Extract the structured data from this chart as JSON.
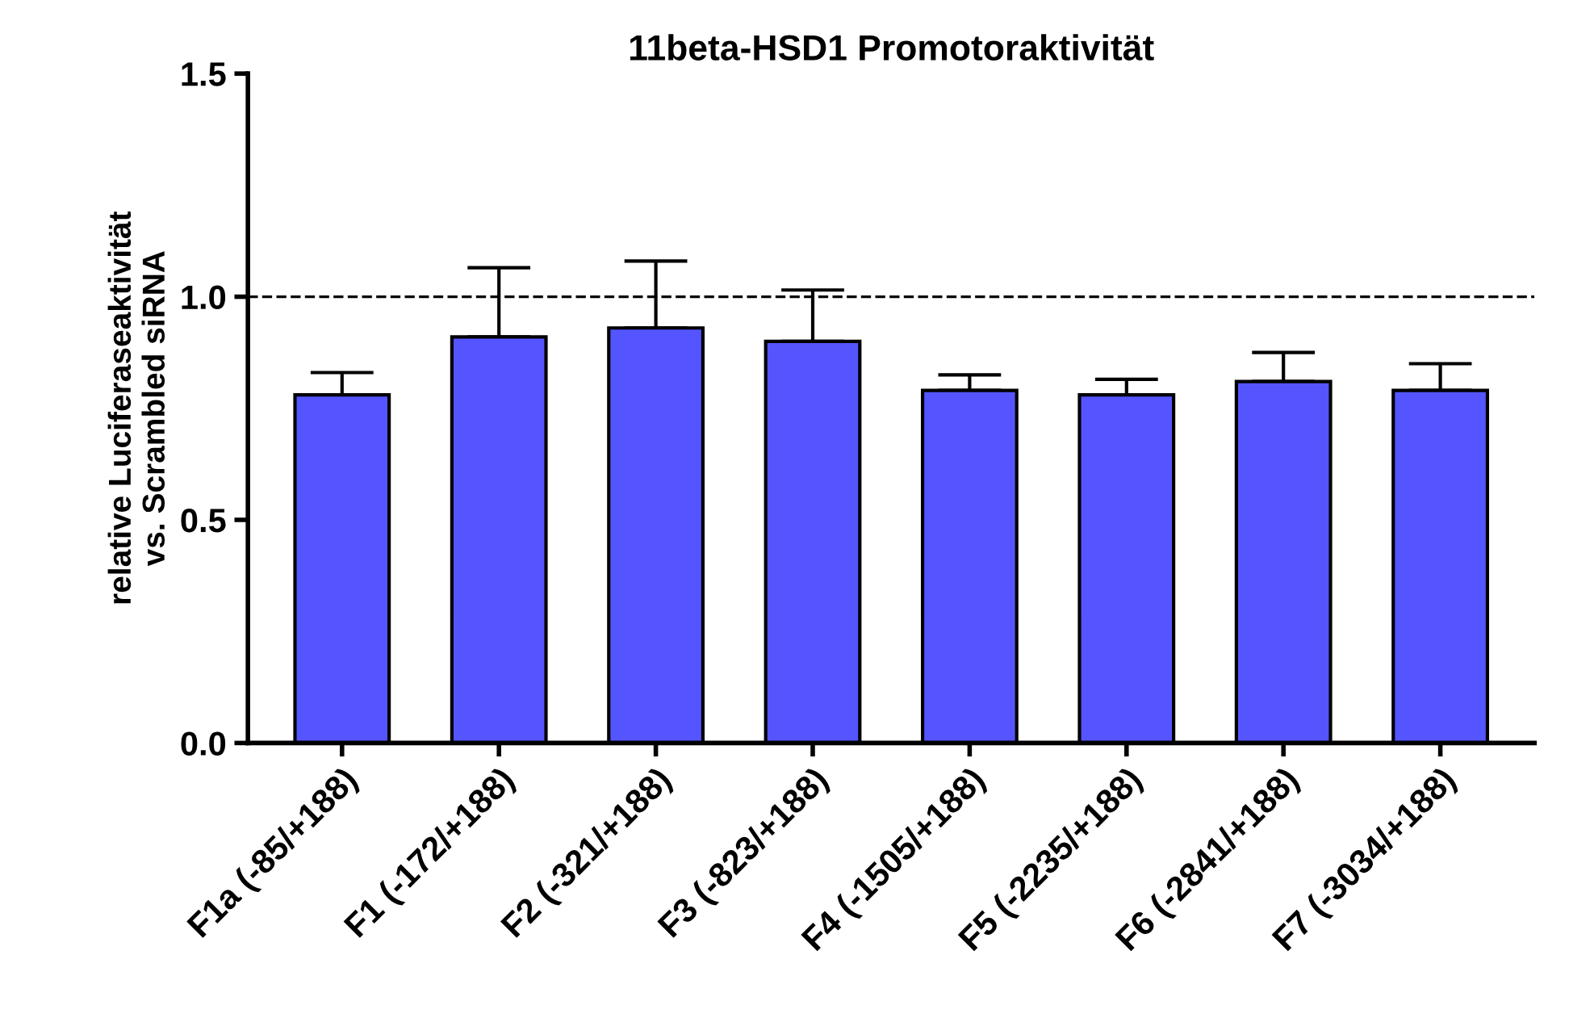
{
  "chart_data": {
    "type": "bar",
    "title": "11beta-HSD1 Promotoraktivität",
    "ylabel": "relative Luciferaseaktivität\nvs. Scrambled siRNA",
    "categories": [
      "F1a (-85/+188)",
      "F1 (-172/+188)",
      "F2 (-321/+188)",
      "F3 (-823/+188)",
      "F4 (-1505/+188)",
      "F5 (-2235/+188)",
      "F6 (-2841/+188)",
      "F7 (-3034/+188)"
    ],
    "values": [
      0.78,
      0.91,
      0.93,
      0.9,
      0.79,
      0.78,
      0.81,
      0.79
    ],
    "errors": [
      [
        0.78,
        0.83
      ],
      [
        0.91,
        1.065
      ],
      [
        0.93,
        1.08
      ],
      [
        0.9,
        1.015
      ],
      [
        0.79,
        0.825
      ],
      [
        0.78,
        0.815
      ],
      [
        0.81,
        0.875
      ],
      [
        0.79,
        0.85
      ]
    ],
    "color": "#5555ff",
    "ylim": [
      0,
      1.5
    ],
    "yticks": [
      {
        "value": 0,
        "label": "0.0"
      },
      {
        "value": 0.5,
        "label": "0.5"
      },
      {
        "value": 1.0,
        "label": "1.0"
      },
      {
        "value": 1.5,
        "label": "1.5"
      }
    ],
    "ref_lines": [
      {
        "axis": "y",
        "value": 1.0,
        "label": null,
        "color": "#000000",
        "line_style": "dashed"
      }
    ],
    "grid": false,
    "legend": false
  }
}
